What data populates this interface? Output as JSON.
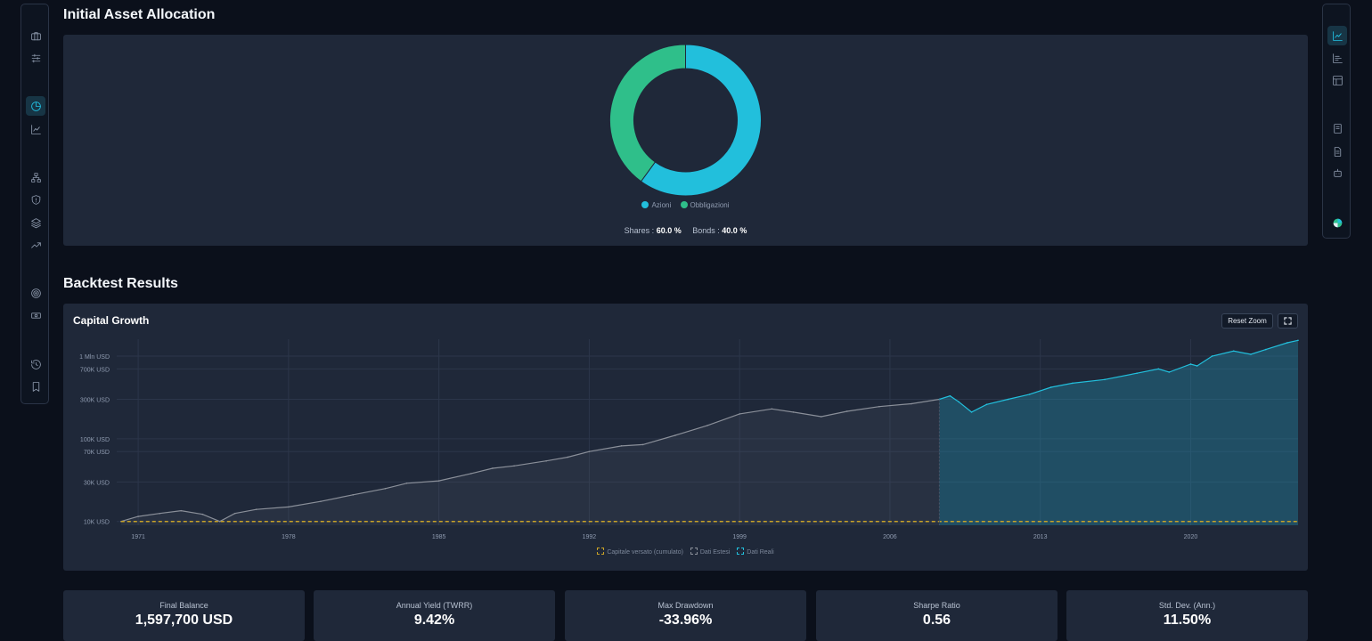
{
  "left_rail": {
    "icons": [
      "briefcase-icon",
      "sliders-icon",
      "pie-chart-icon",
      "line-chart-icon",
      "hierarchy-icon",
      "shield-icon",
      "layers-icon",
      "trending-up-icon",
      "target-icon",
      "banknote-icon",
      "history-icon",
      "bookmark-icon"
    ],
    "active": "pie-chart-icon"
  },
  "right_rail": {
    "icons": [
      "line-chart-icon",
      "bar-chart-icon",
      "layout-icon",
      "book-icon",
      "file-text-icon",
      "robot-icon",
      "globe-icon"
    ],
    "active": "line-chart-icon"
  },
  "allocation": {
    "title": "Initial Asset Allocation",
    "legend": [
      {
        "label": "Azioni",
        "color": "#22bfdc"
      },
      {
        "label": "Obbligazioni",
        "color": "#2fbf8a"
      }
    ],
    "shares_label": "Shares :",
    "shares_value": "60.0 %",
    "bonds_label": "Bonds :",
    "bonds_value": "40.0 %"
  },
  "backtest": {
    "title": "Backtest Results",
    "chart_title": "Capital Growth",
    "reset_zoom": "Reset Zoom",
    "fullscreen_icon": "expand-icon",
    "legend": [
      {
        "label": "Capitale versato (cumulato)",
        "color": "#c9a227"
      },
      {
        "label": "Dati Estesi",
        "color": "#8a8f99"
      },
      {
        "label": "Dati Reali",
        "color": "#22bfdc"
      }
    ]
  },
  "chart_data": [
    {
      "type": "pie",
      "categories": [
        "Azioni",
        "Obbligazioni"
      ],
      "values": [
        60,
        40
      ],
      "colors": [
        "#22bfdc",
        "#2fbf8a"
      ]
    },
    {
      "type": "area",
      "title": "Capital Growth",
      "y_scale": "log",
      "ylim": [
        9000,
        1600000
      ],
      "xlim": [
        1970,
        2025
      ],
      "y_ticks": [
        {
          "v": 10000,
          "label": "10K USD"
        },
        {
          "v": 30000,
          "label": "30K USD"
        },
        {
          "v": 70000,
          "label": "70K USD"
        },
        {
          "v": 100000,
          "label": "100K USD"
        },
        {
          "v": 300000,
          "label": "300K USD"
        },
        {
          "v": 700000,
          "label": "700K USD"
        },
        {
          "v": 1000000,
          "label": "1 Mln USD"
        }
      ],
      "x_ticks": [
        1971,
        1978,
        1985,
        1992,
        1999,
        2006,
        2013,
        2020
      ],
      "series": [
        {
          "name": "Dati Estesi",
          "x": [
            1970.2,
            1971.0,
            1972.0,
            1973.0,
            1974.0,
            1974.8,
            1975.5,
            1976.5,
            1978.0,
            1979.5,
            1981.0,
            1982.5,
            1983.5,
            1985.0,
            1986.5,
            1987.5,
            1988.5,
            1990.0,
            1991.0,
            1992.0,
            1993.5,
            1994.5,
            1996.0,
            1997.5,
            1999.0,
            2000.5,
            2001.5,
            2002.8,
            2004.0,
            2005.5,
            2007.0,
            2008.3
          ],
          "y": [
            10000,
            11500,
            12500,
            13500,
            12200,
            10000,
            12500,
            14000,
            15000,
            17500,
            21000,
            25000,
            29000,
            31000,
            38000,
            44000,
            47000,
            54000,
            60000,
            70000,
            82000,
            85000,
            110000,
            145000,
            200000,
            230000,
            210000,
            185000,
            215000,
            245000,
            265000,
            300000
          ]
        },
        {
          "name": "Dati Reali",
          "x": [
            2008.3,
            2008.8,
            2009.2,
            2009.8,
            2010.5,
            2011.5,
            2012.5,
            2013.5,
            2014.5,
            2016.0,
            2017.5,
            2018.5,
            2019.0,
            2020.0,
            2020.3,
            2021.0,
            2022.0,
            2022.8,
            2023.5,
            2024.5,
            2025.0
          ],
          "y": [
            300000,
            330000,
            280000,
            210000,
            260000,
            300000,
            345000,
            420000,
            470000,
            520000,
            620000,
            700000,
            640000,
            800000,
            760000,
            1000000,
            1150000,
            1050000,
            1200000,
            1450000,
            1550000
          ]
        },
        {
          "name": "Capitale versato (cumulato)",
          "x": [
            1970.2,
            2025.0
          ],
          "y": [
            10000,
            10000
          ]
        }
      ]
    }
  ],
  "stats": [
    {
      "label": "Final Balance",
      "value": "1,597,700 USD"
    },
    {
      "label": "Annual Yield (TWRR)",
      "value": "9.42%"
    },
    {
      "label": "Max Drawdown",
      "value": "-33.96%"
    },
    {
      "label": "Sharpe Ratio",
      "value": "0.56"
    },
    {
      "label": "Std. Dev. (Ann.)",
      "value": "11.50%"
    }
  ]
}
